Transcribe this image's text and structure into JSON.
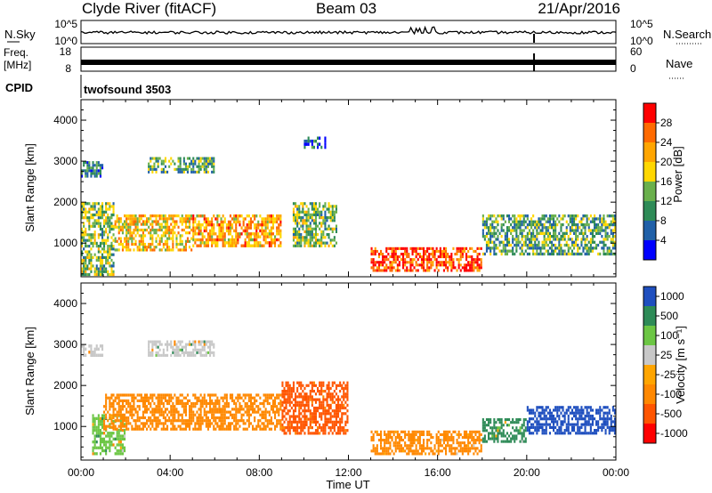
{
  "header": {
    "station": "Clyde River (fitACF)",
    "beam": "Beam 03",
    "date": "21/Apr/2016"
  },
  "strip_noise": {
    "left_label": "N.Sky",
    "right_label": "N.Search",
    "left_ticks": [
      "10^5",
      "10^0"
    ],
    "right_ticks": [
      "10^5",
      "10^0"
    ]
  },
  "strip_freq": {
    "left_label_1": "Freq.",
    "left_label_2": "[MHz]",
    "left_ticks": [
      "18",
      "8"
    ],
    "right_ticks": [
      "60",
      "0"
    ],
    "right_label": "Nave"
  },
  "strip_cpid": {
    "label": "CPID",
    "value": "twofsound 3503"
  },
  "x_axis": {
    "label": "Time UT",
    "tick_labels": [
      "00:00",
      "04:00",
      "08:00",
      "12:00",
      "16:00",
      "20:00",
      "00:00"
    ]
  },
  "colors": {
    "power": [
      "#0000ff",
      "#2060a8",
      "#2e8b57",
      "#6ab04c",
      "#ffd700",
      "#ffa500",
      "#ff6a00",
      "#ff0000"
    ],
    "velocity": [
      "#ff0000",
      "#ff5500",
      "#ff8800",
      "#ffa500",
      "#c8c8c8",
      "#6cc644",
      "#2e8b57",
      "#1f4fbf"
    ]
  },
  "chart_data": [
    {
      "type": "heatmap",
      "title": "",
      "xlabel": "Time UT",
      "ylabel": "Slant Range [km]",
      "xlim": [
        0,
        24
      ],
      "ylim": [
        180,
        4500
      ],
      "x_ticks": [
        "00:00",
        "04:00",
        "08:00",
        "12:00",
        "16:00",
        "20:00",
        "00:00"
      ],
      "y_ticks": [
        1000,
        2000,
        3000,
        4000
      ],
      "colorbar": {
        "label": "Power [dB]",
        "range": [
          0,
          32
        ],
        "tick_values": [
          4,
          8,
          12,
          16,
          20,
          24,
          28
        ],
        "tick_labels": [
          "4",
          "8",
          "12",
          "16",
          "20",
          "24",
          "28"
        ]
      },
      "features": [
        {
          "t_start": 0.0,
          "t_end": 1.5,
          "range_low": 200,
          "range_high": 2000,
          "power": 14
        },
        {
          "t_start": 1.5,
          "t_end": 5.0,
          "range_low": 800,
          "range_high": 1700,
          "power": 20
        },
        {
          "t_start": 5.0,
          "t_end": 9.0,
          "range_low": 900,
          "range_high": 1700,
          "power": 22
        },
        {
          "t_start": 9.5,
          "t_end": 11.5,
          "range_low": 900,
          "range_high": 2000,
          "power": 14
        },
        {
          "t_start": 13.0,
          "t_end": 18.0,
          "range_low": 300,
          "range_high": 900,
          "power": 28
        },
        {
          "t_start": 18.0,
          "t_end": 24.0,
          "range_low": 700,
          "range_high": 1700,
          "power": 12
        },
        {
          "t_start": 0.0,
          "t_end": 1.0,
          "range_low": 2600,
          "range_high": 3000,
          "power": 8
        },
        {
          "t_start": 3.0,
          "t_end": 6.0,
          "range_low": 2700,
          "range_high": 3100,
          "power": 12
        },
        {
          "t_start": 10.0,
          "t_end": 11.0,
          "range_low": 3300,
          "range_high": 3600,
          "power": 6
        }
      ]
    },
    {
      "type": "heatmap",
      "title": "",
      "xlabel": "Time UT",
      "ylabel": "Slant Range [km]",
      "xlim": [
        0,
        24
      ],
      "ylim": [
        180,
        4500
      ],
      "x_ticks": [
        "00:00",
        "04:00",
        "08:00",
        "12:00",
        "16:00",
        "20:00",
        "00:00"
      ],
      "y_ticks": [
        1000,
        2000,
        3000,
        4000
      ],
      "colorbar": {
        "label": "Velocity [m s⁻¹]",
        "tick_labels": [
          "-1000",
          "-500",
          "-100",
          "-25",
          "25",
          "100",
          "500",
          "1000"
        ]
      },
      "features": [
        {
          "t_start": 0.5,
          "t_end": 2.0,
          "range_low": 300,
          "range_high": 1300,
          "velocity": 25
        },
        {
          "t_start": 1.0,
          "t_end": 9.0,
          "range_low": 900,
          "range_high": 1800,
          "velocity": -300
        },
        {
          "t_start": 9.0,
          "t_end": 12.0,
          "range_low": 800,
          "range_high": 2100,
          "velocity": -600
        },
        {
          "t_start": 13.0,
          "t_end": 18.0,
          "range_low": 300,
          "range_high": 900,
          "velocity": -200
        },
        {
          "t_start": 18.0,
          "t_end": 20.0,
          "range_low": 600,
          "range_high": 1200,
          "velocity": 150
        },
        {
          "t_start": 20.0,
          "t_end": 24.0,
          "range_low": 800,
          "range_high": 1500,
          "velocity": 700
        },
        {
          "t_start": 0.0,
          "t_end": 1.0,
          "range_low": 2700,
          "range_high": 3000,
          "velocity": 0
        },
        {
          "t_start": 3.0,
          "t_end": 6.0,
          "range_low": 2700,
          "range_high": 3100,
          "velocity": 0
        }
      ]
    }
  ]
}
